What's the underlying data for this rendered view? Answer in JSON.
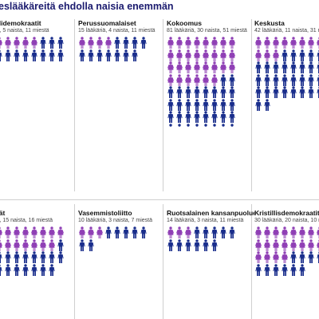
{
  "title": "eslääkäreitä ehdolla naisia enemmän",
  "colors": {
    "women": "#8f3fb5",
    "men": "#1a2e8c",
    "title": "#1a1a6e"
  },
  "legend": [],
  "chart_data": {
    "type": "pictogram",
    "title": "eslääkäreitä ehdolla naisia enemmän",
    "unit": "lääkäriä",
    "series": [
      {
        "key": "women",
        "color": "#8f3fb5"
      },
      {
        "key": "men",
        "color": "#1a2e8c"
      }
    ],
    "panels": [
      {
        "name": "alidemokraatit",
        "stats": "ia, 5 naista, 11 miestä",
        "total": 16,
        "women": 5,
        "men": 11
      },
      {
        "name": "Perussuomalaiset",
        "stats": "15 lääkäriä, 4 naista, 11 miestä",
        "total": 15,
        "women": 4,
        "men": 11
      },
      {
        "name": "Kokoomus",
        "stats": "81 lääkäriä, 30 naista, 51 miestä",
        "total": 81,
        "women": 30,
        "men": 51
      },
      {
        "name": "Keskusta",
        "stats": "42 lääkäriä, 11 naista, 31 miestä",
        "total": 42,
        "women": 11,
        "men": 31
      },
      {
        "name": "eät",
        "stats": "iä, 15 naista, 16 miestä",
        "total": 31,
        "women": 15,
        "men": 16
      },
      {
        "name": "Vasemmistoliitto",
        "stats": "10 lääkäriä, 3 naista, 7 miestä",
        "total": 10,
        "women": 3,
        "men": 7
      },
      {
        "name": "Ruotsalainen kansanpuolue",
        "stats": "14 lääkäriä, 3 naista, 11 miestä",
        "total": 14,
        "women": 3,
        "men": 11
      },
      {
        "name": "Kristillisdemokraatit",
        "stats": "30 lääkäriä, 20 naista, 10 miestä",
        "total": 30,
        "women": 20,
        "men": 10
      }
    ]
  }
}
